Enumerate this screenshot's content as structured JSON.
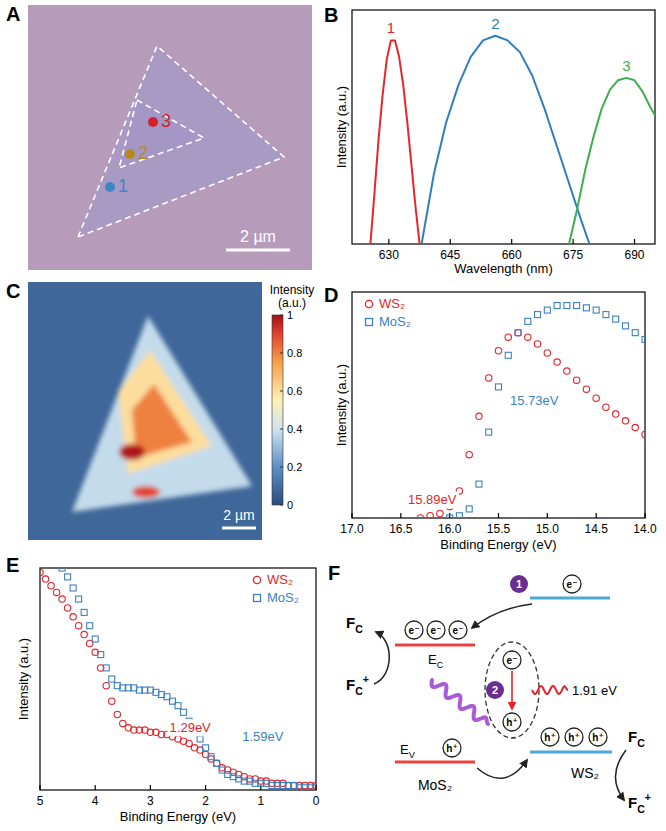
{
  "chart_data": [
    {
      "panel_label": "B",
      "type": "line",
      "x_label": "Wavelength (nm)",
      "y_label": "Intensity (a.u.)",
      "xlim": [
        621,
        695
      ],
      "xticks": [
        630,
        645,
        660,
        675,
        690
      ],
      "ylim": [
        0,
        1
      ],
      "tick_labels": "x",
      "series": [
        {
          "name": "1",
          "color": "#e8262b",
          "x": [
            625.5,
            626.5,
            627.5,
            628.5,
            629.5,
            630.5,
            631.5,
            632.5,
            633.5,
            634.5,
            635.5,
            636.5,
            637.5
          ],
          "values": [
            0,
            0.22,
            0.45,
            0.64,
            0.79,
            0.87,
            0.87,
            0.8,
            0.68,
            0.52,
            0.34,
            0.16,
            0
          ]
        },
        {
          "name": "2",
          "color": "#2f7ec2",
          "x": [
            638,
            641,
            644,
            647,
            650,
            653,
            656,
            659,
            662,
            665,
            668,
            671,
            674,
            677,
            679
          ],
          "values": [
            0,
            0.3,
            0.52,
            0.68,
            0.8,
            0.87,
            0.89,
            0.87,
            0.82,
            0.72,
            0.58,
            0.42,
            0.26,
            0.1,
            0
          ]
        },
        {
          "name": "3",
          "color": "#3dae49",
          "x": [
            674,
            676,
            678,
            680,
            682,
            684,
            686,
            688,
            690,
            692,
            694,
            695
          ],
          "values": [
            0,
            0.15,
            0.32,
            0.46,
            0.58,
            0.66,
            0.7,
            0.71,
            0.7,
            0.65,
            0.58,
            0.55
          ]
        }
      ]
    },
    {
      "panel_label": "D",
      "type": "scatter",
      "x_label": "Binding Energy (eV)",
      "y_label": "Intensity (a.u.)",
      "xlim": [
        17,
        14
      ],
      "xticks": [
        {
          "value": 17,
          "label": "17.0"
        },
        16.5,
        {
          "value": 16,
          "label": "16.0"
        },
        15.5,
        {
          "value": 15,
          "label": "15.0"
        },
        14.5,
        {
          "value": 14,
          "label": "14.0"
        }
      ],
      "ylim": [
        0,
        1
      ],
      "tick_labels": "x",
      "legend": "upper left",
      "series": [
        {
          "name": "WS₂",
          "color": "#e3242b",
          "marker": "circle",
          "x": [
            16.3,
            16.2,
            16.1,
            16.0,
            15.9,
            15.8,
            15.7,
            15.6,
            15.5,
            15.4,
            15.3,
            15.2,
            15.1,
            15.0,
            14.9,
            14.8,
            14.7,
            14.6,
            14.5,
            14.4,
            14.3,
            14.2,
            14.1,
            14.0
          ],
          "values": [
            0,
            0.01,
            0.02,
            0.05,
            0.12,
            0.28,
            0.45,
            0.62,
            0.74,
            0.8,
            0.82,
            0.8,
            0.77,
            0.73,
            0.69,
            0.65,
            0.61,
            0.57,
            0.53,
            0.49,
            0.46,
            0.43,
            0.4,
            0.37
          ]
        },
        {
          "name": "MoS₂",
          "color": "#3c80c1",
          "marker": "square",
          "x": [
            16.0,
            15.9,
            15.8,
            15.7,
            15.6,
            15.5,
            15.4,
            15.3,
            15.2,
            15.1,
            15.0,
            14.9,
            14.8,
            14.7,
            14.6,
            14.5,
            14.4,
            14.3,
            14.2,
            14.1,
            14.0
          ],
          "values": [
            0,
            0.01,
            0.04,
            0.15,
            0.38,
            0.58,
            0.72,
            0.82,
            0.87,
            0.9,
            0.92,
            0.94,
            0.94,
            0.94,
            0.93,
            0.92,
            0.9,
            0.88,
            0.85,
            0.82,
            0.79
          ]
        }
      ],
      "annotations": [
        {
          "text": "15.89eV",
          "x": 15.89,
          "color": "#e3242b"
        },
        {
          "text": "15.73eV",
          "x": 15.73,
          "color": "#3c80c1"
        }
      ]
    },
    {
      "panel_label": "E",
      "type": "scatter",
      "x_label": "Binding Energy (eV)",
      "y_label": "Intensity (a.u.)",
      "xlim": [
        5,
        0
      ],
      "xticks": [
        5,
        4,
        3,
        2,
        1,
        0
      ],
      "ylim": [
        0,
        1
      ],
      "tick_labels": "x",
      "legend": "upper right",
      "series": [
        {
          "name": "WS₂",
          "color": "#e3242b",
          "marker": "circle",
          "x": [
            5.0,
            4.9,
            4.8,
            4.7,
            4.6,
            4.5,
            4.4,
            4.3,
            4.2,
            4.1,
            4.0,
            3.9,
            3.8,
            3.7,
            3.6,
            3.5,
            3.4,
            3.3,
            3.2,
            3.1,
            3.0,
            2.9,
            2.8,
            2.7,
            2.6,
            2.5,
            2.4,
            2.3,
            2.2,
            2.1,
            2.0,
            1.9,
            1.8,
            1.7,
            1.6,
            1.5,
            1.4,
            1.3,
            1.2,
            1.1,
            1.0,
            0.9,
            0.8,
            0.7,
            0.6,
            0.5,
            0.4,
            0.3,
            0.2,
            0.1,
            0.0
          ],
          "values": [
            0.98,
            0.95,
            0.92,
            0.89,
            0.86,
            0.82,
            0.78,
            0.74,
            0.7,
            0.66,
            0.62,
            0.55,
            0.47,
            0.4,
            0.34,
            0.3,
            0.28,
            0.27,
            0.27,
            0.27,
            0.26,
            0.26,
            0.25,
            0.25,
            0.24,
            0.23,
            0.22,
            0.21,
            0.19,
            0.18,
            0.16,
            0.14,
            0.12,
            0.1,
            0.09,
            0.08,
            0.07,
            0.06,
            0.05,
            0.05,
            0.04,
            0.04,
            0.03,
            0.03,
            0.03,
            0.02,
            0.02,
            0.02,
            0.02,
            0.02,
            0.02
          ]
        },
        {
          "name": "MoS₂",
          "color": "#3c80c1",
          "marker": "square",
          "x": [
            4.6,
            4.5,
            4.4,
            4.3,
            4.2,
            4.1,
            4.0,
            3.9,
            3.8,
            3.7,
            3.6,
            3.5,
            3.4,
            3.3,
            3.2,
            3.1,
            3.0,
            2.9,
            2.8,
            2.7,
            2.6,
            2.5,
            2.4,
            2.3,
            2.2,
            2.1,
            2.0,
            1.9,
            1.8,
            1.7,
            1.6,
            1.5,
            1.4,
            1.3,
            1.2,
            1.1,
            1.0,
            0.9,
            0.8,
            0.7,
            0.6,
            0.5,
            0.4,
            0.3,
            0.2,
            0.1,
            0.0
          ],
          "values": [
            1.0,
            0.96,
            0.91,
            0.86,
            0.8,
            0.74,
            0.68,
            0.61,
            0.55,
            0.5,
            0.47,
            0.46,
            0.46,
            0.46,
            0.45,
            0.45,
            0.45,
            0.44,
            0.43,
            0.42,
            0.4,
            0.38,
            0.35,
            0.31,
            0.27,
            0.23,
            0.19,
            0.15,
            0.12,
            0.09,
            0.07,
            0.06,
            0.05,
            0.04,
            0.04,
            0.03,
            0.03,
            0.03,
            0.02,
            0.02,
            0.02,
            0.02,
            0.02,
            0.01,
            0.01,
            0.01,
            0.01
          ]
        }
      ],
      "annotations": [
        {
          "text": "1.29eV",
          "x": 1.29,
          "color": "#e3242b"
        },
        {
          "text": "1.59eV",
          "x": 1.59,
          "color": "#3c80c1"
        }
      ]
    }
  ],
  "image_panel": {
    "panel_label": "A",
    "points": [
      {
        "label": "1",
        "color": "#3b86c6"
      },
      {
        "label": "2",
        "color": "#b88a1e"
      },
      {
        "label": "3",
        "color": "#d2232a"
      }
    ],
    "scale_bar": "2 µm"
  },
  "map_panel": {
    "panel_label": "C",
    "colorbar_title": "Intensity (a.u.)",
    "colorbar_lim": [
      0,
      1
    ],
    "colorbar_ticks": [
      0,
      0.2,
      0.4,
      0.6,
      0.8,
      1
    ],
    "region_intensity": [
      0.08,
      0.38,
      0.6,
      0.8,
      0.98,
      0.9
    ],
    "scale_bar": "2 µm"
  },
  "diagram": {
    "panel_label": "F",
    "redox_reduced": {
      "main": "F",
      "sub": "C"
    },
    "redox_oxidized": {
      "main": "F",
      "sub": "C",
      "sup": "+"
    },
    "conduction_band": {
      "main": "E",
      "sub": "C"
    },
    "valence_band": {
      "main": "E",
      "sub": "V"
    },
    "electron": "e⁻",
    "hole": "h⁺",
    "steps": [
      "1",
      "2"
    ],
    "emission": "1.91 eV",
    "materials": [
      "MoS₂",
      "WS₂"
    ]
  }
}
